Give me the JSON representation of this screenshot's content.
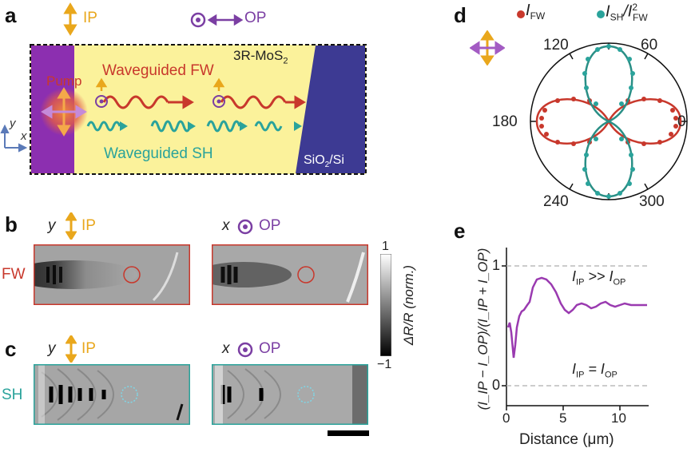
{
  "panel_a": {
    "letter": "a",
    "ip_label": "IP",
    "op_label": "OP",
    "pump": "Pump",
    "material": "3R-MoS",
    "material_sub": "2",
    "fw_label": "Waveguided FW",
    "sh_label": "Waveguided SH",
    "substrate": "SiO",
    "substrate_sub": "2",
    "substrate_tail": "/Si",
    "axis_y": "y",
    "axis_x": "x"
  },
  "panel_b": {
    "letter": "b",
    "row_label": "FW",
    "left_axis": "y",
    "left_pol": "IP",
    "right_axis": "x",
    "right_pol": "OP"
  },
  "panel_c": {
    "letter": "c",
    "row_label": "SH",
    "left_axis": "y",
    "left_pol": "IP",
    "right_axis": "x",
    "right_pol": "OP"
  },
  "colorbar": {
    "max": "1",
    "min": "−1",
    "label": "ΔR/R (norm.)"
  },
  "panel_d": {
    "letter": "d",
    "legend_fw": "I",
    "legend_fw_sub": "FW",
    "legend_sh": "I",
    "legend_sh_sub": "SH",
    "legend_sh_tail": "/I",
    "legend_sh_sup": "2",
    "legend_sh_sub2": "FW",
    "angles": [
      "120",
      "60",
      "180",
      "0",
      "240",
      "300"
    ]
  },
  "panel_e": {
    "letter": "e",
    "ylabel": "(I_IP − I_OP)/(I_IP + I_OP)",
    "xlabel": "Distance (μm)",
    "xticks": [
      "0",
      "5",
      "10"
    ],
    "yticks": [
      "0",
      "1"
    ],
    "annot_top_main": "I",
    "annot_top_sub1": "IP",
    "annot_top_mid": " >> I",
    "annot_top_sub2": "OP",
    "annot_bot_main": "I",
    "annot_bot_sub1": "IP",
    "annot_bot_mid": " = I",
    "annot_bot_sub2": "OP"
  },
  "colors": {
    "ip": "#e9a71c",
    "op": "#7b3fa3",
    "fw": "#c8382c",
    "sh": "#2aa39b",
    "waveguide": "#fbf29b",
    "substrate": "#3d3a93"
  }
}
